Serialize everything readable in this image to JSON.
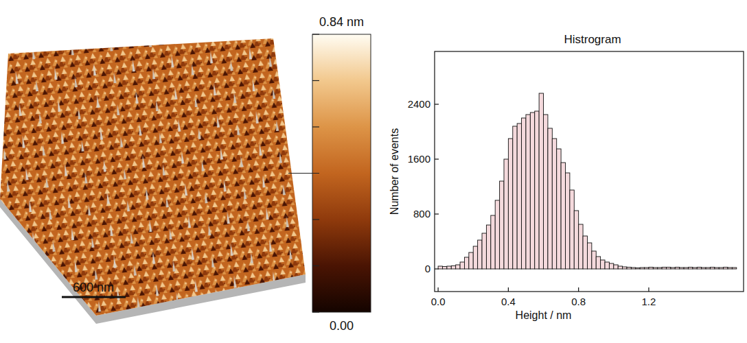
{
  "image": {
    "scale_bar": "600 nm",
    "colorbar": {
      "range": [
        0,
        0.84
      ],
      "tick_marks": [
        0,
        0.14,
        0.28,
        0.42,
        0.56,
        0.7,
        0.84
      ],
      "labels": [
        {
          "value": 0.84,
          "label": "0.84 nm"
        },
        {
          "value": 0,
          "label": "0.00"
        }
      ],
      "colors": [
        "#140400",
        "#4a1403",
        "#8f3a0c",
        "#c2651f",
        "#dd9447",
        "#f2c88d",
        "#fffcf2"
      ]
    }
  },
  "chart_data": {
    "type": "histogram",
    "title": "Histrogram",
    "x_label": "Height / nm",
    "y_label": "Number of events",
    "bins": [
      0,
      0.025,
      0.05,
      0.075,
      0.1,
      0.125,
      0.15,
      0.175,
      0.2,
      0.225,
      0.25,
      0.275,
      0.3,
      0.325,
      0.35,
      0.375,
      0.4,
      0.425,
      0.45,
      0.475,
      0.5,
      0.525,
      0.55,
      0.575,
      0.6,
      0.625,
      0.65,
      0.675,
      0.7,
      0.725,
      0.75,
      0.775,
      0.8,
      0.825,
      0.85,
      0.875,
      0.9,
      0.925,
      0.95,
      0.975,
      1.0,
      1.025,
      1.05,
      1.075,
      1.1,
      1.125,
      1.15,
      1.175,
      1.2,
      1.225,
      1.25,
      1.275,
      1.3,
      1.325,
      1.35,
      1.375,
      1.4,
      1.425,
      1.45,
      1.475,
      1.5,
      1.525,
      1.55,
      1.575,
      1.6,
      1.625,
      1.65,
      1.675,
      1.7
    ],
    "values": [
      40,
      35,
      40,
      45,
      60,
      100,
      170,
      240,
      330,
      420,
      520,
      640,
      780,
      1000,
      1280,
      1600,
      1900,
      2080,
      2120,
      2200,
      2250,
      2280,
      2300,
      2560,
      2250,
      2050,
      1900,
      1750,
      1550,
      1400,
      1150,
      850,
      650,
      480,
      380,
      260,
      180,
      130,
      100,
      80,
      60,
      40,
      30,
      25,
      20,
      15,
      20,
      20,
      25,
      20,
      20,
      25,
      25,
      20,
      25,
      20,
      20,
      25,
      20,
      25,
      20,
      20,
      25,
      20,
      20,
      25,
      20,
      20
    ],
    "color": "#f5dadd",
    "xlim": [
      -0.02,
      1.74
    ],
    "ylim": [
      -330,
      3170
    ],
    "xticks": [
      {
        "value": 0,
        "label": "0.0"
      },
      {
        "value": 0.4,
        "label": "0.4"
      },
      {
        "value": 0.8,
        "label": "0.8"
      },
      {
        "value": 1.2,
        "label": "1.2"
      }
    ],
    "yticks": [
      0,
      800,
      1600,
      2400
    ],
    "grid": false
  }
}
